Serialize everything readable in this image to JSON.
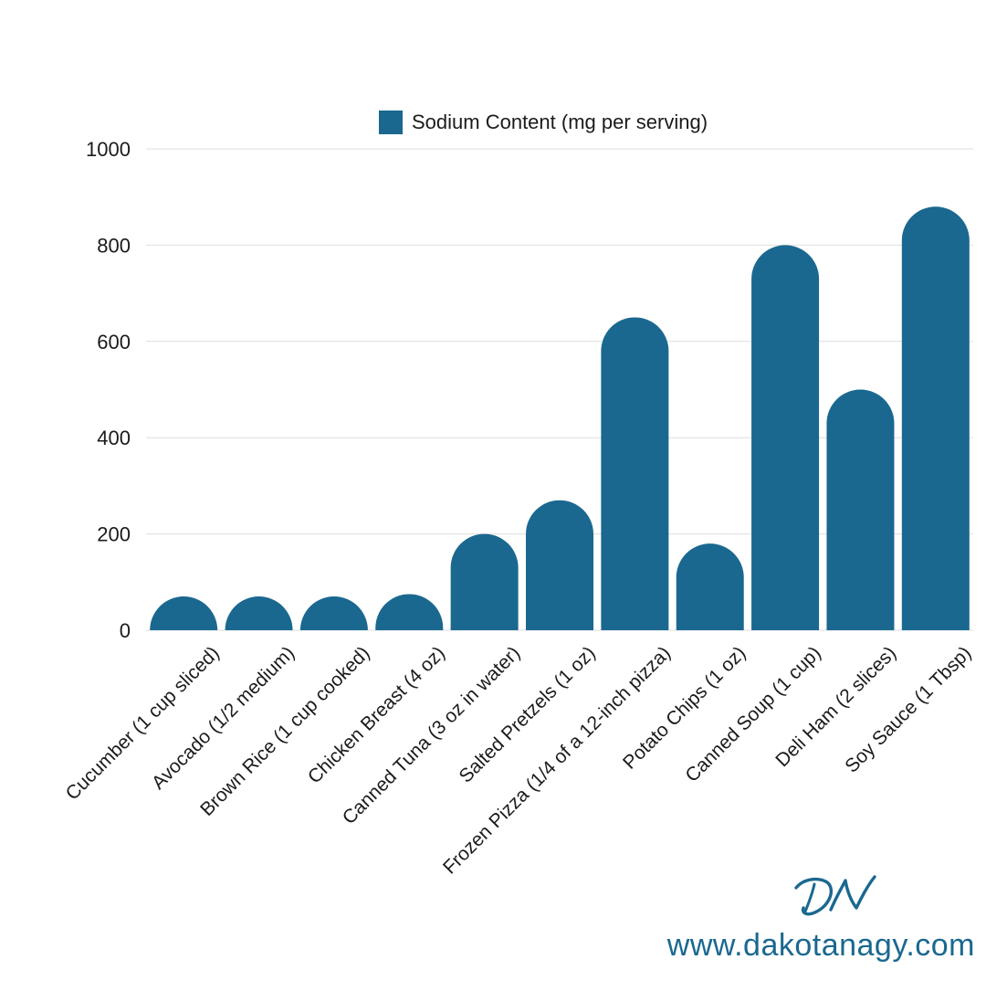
{
  "chart_data": {
    "type": "bar",
    "title": "",
    "xlabel": "",
    "ylabel": "",
    "legend_position": "top",
    "grid": true,
    "ylim": [
      0,
      1000
    ],
    "yticks": [
      "0",
      "200",
      "400",
      "600",
      "800",
      "1000"
    ],
    "categories": [
      "Cucumber (1 cup sliced)",
      "Avocado (1/2 medium)",
      "Brown Rice (1 cup cooked)",
      "Chicken Breast (4 oz)",
      "Canned Tuna (3 oz in water)",
      "Salted Pretzels (1 oz)",
      "Frozen Pizza (1/4 of a 12-inch pizza)",
      "Potato Chips (1 oz)",
      "Canned Soup (1 cup)",
      "Deli Ham (2 slices)",
      "Soy Sauce (1 Tbsp)"
    ],
    "series": [
      {
        "name": "Sodium Content (mg per serving)",
        "color": "#1a6890",
        "values": [
          2,
          10,
          5,
          75,
          200,
          270,
          650,
          180,
          800,
          500,
          880
        ]
      }
    ]
  },
  "branding": {
    "logo_text": "DN",
    "logo_icon": "dn-monogram-logo",
    "website": "www.dakotanagy.com",
    "accent_color": "#1a6890"
  }
}
